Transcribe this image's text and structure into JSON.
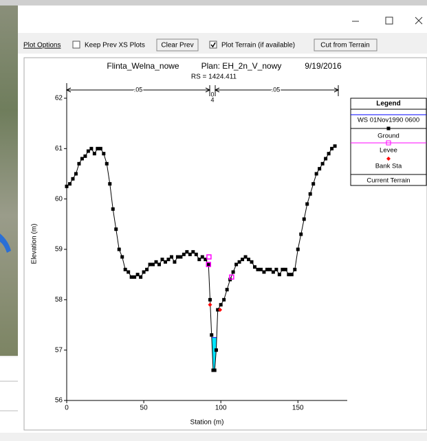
{
  "toolbar": {
    "plot_options": "Plot Options",
    "keep_prev": "Keep Prev XS Plots",
    "clear_prev": "Clear Prev",
    "plot_terrain": "Plot Terrain (if available)",
    "cut_terrain": "Cut from Terrain"
  },
  "chart_data": {
    "type": "line",
    "title": "Flinta_Welna_nowe",
    "plan": "Plan: EH_2n_V_nowy",
    "date": "9/19/2016",
    "subtitle": "RS = 1424.411",
    "x_label": "Station (m)",
    "y_label": "Elevation (m)",
    "xlim": [
      0,
      182
    ],
    "ylim": [
      56,
      62.3
    ],
    "xticks": [
      0,
      50,
      100,
      150
    ],
    "yticks": [
      56,
      57,
      58,
      59,
      60,
      61,
      62
    ],
    "annotations": [
      ".05",
      "0",
      "4",
      ".05"
    ],
    "legend_title": "Legend",
    "legend_position": "right",
    "series": [
      {
        "name": "WS 01Nov1990 0600",
        "color": "#0000ff",
        "x": [
          94.3,
          97.2
        ],
        "values": [
          57.25,
          57.25
        ]
      },
      {
        "name": "Ground",
        "color": "#000000",
        "x": [
          0,
          2,
          4,
          6,
          8,
          10,
          12,
          14,
          16,
          18,
          20,
          22,
          24,
          26,
          28,
          30,
          32,
          34,
          36,
          38,
          40,
          42,
          44,
          46,
          48,
          50,
          52,
          54,
          56,
          58,
          60,
          62,
          64,
          66,
          68,
          70,
          72,
          74,
          76,
          78,
          80,
          82,
          84,
          86,
          88,
          90,
          92,
          93,
          94,
          95,
          96,
          97,
          98,
          100,
          102,
          104,
          106,
          108,
          110,
          112,
          114,
          116,
          118,
          120,
          122,
          124,
          126,
          128,
          130,
          132,
          134,
          136,
          138,
          140,
          142,
          144,
          146,
          148,
          150,
          152,
          154,
          156,
          158,
          160,
          162,
          164,
          166,
          168,
          170,
          172,
          174
        ],
        "values": [
          60.25,
          60.3,
          60.4,
          60.5,
          60.7,
          60.8,
          60.85,
          60.95,
          61.0,
          60.9,
          61.0,
          61.0,
          60.9,
          60.7,
          60.3,
          59.8,
          59.4,
          59.0,
          58.85,
          58.6,
          58.55,
          58.45,
          58.45,
          58.5,
          58.45,
          58.55,
          58.6,
          58.7,
          58.7,
          58.75,
          58.7,
          58.8,
          58.75,
          58.8,
          58.85,
          58.75,
          58.85,
          58.85,
          58.9,
          58.95,
          58.9,
          58.95,
          58.9,
          58.8,
          58.85,
          58.8,
          58.7,
          58.0,
          57.3,
          56.6,
          56.6,
          57.0,
          57.8,
          57.9,
          58.0,
          58.2,
          58.4,
          58.55,
          58.7,
          58.75,
          58.8,
          58.85,
          58.8,
          58.75,
          58.65,
          58.6,
          58.6,
          58.55,
          58.6,
          58.6,
          58.55,
          58.6,
          58.5,
          58.6,
          58.6,
          58.5,
          58.5,
          58.6,
          59.0,
          59.3,
          59.6,
          59.9,
          60.1,
          60.3,
          60.5,
          60.6,
          60.7,
          60.8,
          60.9,
          61.0,
          61.05
        ]
      },
      {
        "name": "Levee",
        "color": "#ff00ff",
        "x": [
          92,
          92.3,
          107
        ],
        "values": [
          58.7,
          58.85,
          58.45
        ]
      },
      {
        "name": "Bank Sta",
        "color": "#ff0000",
        "x": [
          93,
          99.5
        ],
        "values": [
          57.9,
          57.8
        ]
      },
      {
        "name": "Current Terrain",
        "color": "#000000",
        "x": [],
        "values": []
      }
    ]
  }
}
